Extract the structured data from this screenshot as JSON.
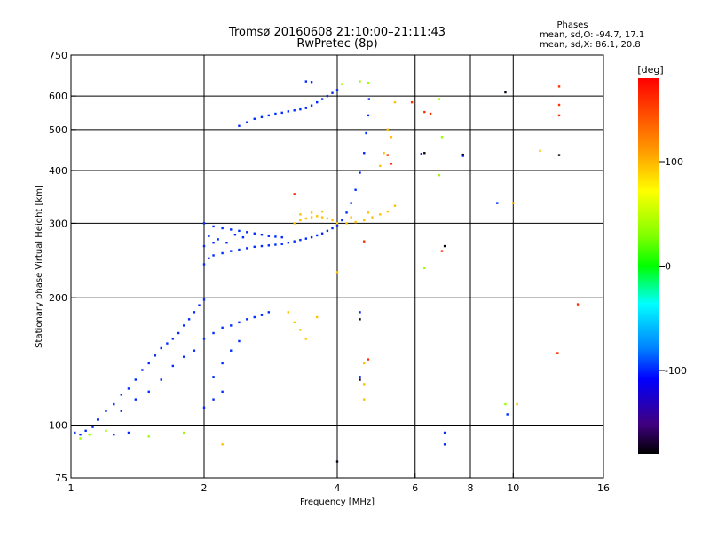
{
  "chart_data": {
    "type": "scatter",
    "title": "Tromsø 20160608 21:10:00–21:11:43",
    "subtitle": "RwPretec (8p)",
    "xlabel": "Frequency [MHz]",
    "ylabel": "Stationary phase Virtual Height [km]",
    "x_scale": "log",
    "y_scale": "log",
    "xlim": [
      1,
      16
    ],
    "ylim": [
      75,
      750
    ],
    "x_ticks": [
      1,
      2,
      4,
      6,
      8,
      10,
      16
    ],
    "x_tick_labels": [
      "1",
      "2",
      "4",
      "6",
      "8",
      "10",
      "16"
    ],
    "y_ticks": [
      75,
      100,
      200,
      300,
      400,
      500,
      600,
      750
    ],
    "y_tick_labels": [
      "75",
      "100",
      "200",
      "300",
      "400",
      "500",
      "600",
      "750"
    ],
    "x_grid": [
      1,
      2,
      4,
      6,
      8,
      10
    ],
    "y_grid": [
      100,
      200,
      300,
      400,
      500,
      600
    ],
    "grid": true,
    "stats": {
      "heading": "Phases",
      "line_o": "mean, sd,O: -94.7, 17.1",
      "line_x": "mean, sd,X:  86.1, 20.8"
    },
    "colorbar": {
      "label": "[deg]",
      "range": [
        -180,
        180
      ],
      "ticks": [
        100,
        0,
        -100
      ],
      "tick_labels": [
        "100",
        "0",
        "-100"
      ],
      "colors": [
        "#ff0000",
        "#ffff00",
        "#00ff00",
        "#00ffff",
        "#0000ff",
        "#000000"
      ]
    },
    "series": [
      {
        "phase_deg": -100,
        "points": [
          [
            1.02,
            96
          ],
          [
            1.05,
            95
          ],
          [
            1.08,
            97
          ],
          [
            1.12,
            99
          ],
          [
            1.15,
            103
          ],
          [
            1.2,
            108
          ],
          [
            1.25,
            112
          ],
          [
            1.3,
            118
          ],
          [
            1.35,
            122
          ],
          [
            1.4,
            128
          ],
          [
            1.45,
            135
          ],
          [
            1.5,
            140
          ],
          [
            1.55,
            146
          ],
          [
            1.6,
            152
          ],
          [
            1.65,
            156
          ],
          [
            1.7,
            160
          ],
          [
            1.75,
            165
          ],
          [
            1.8,
            172
          ],
          [
            1.85,
            178
          ],
          [
            1.9,
            185
          ],
          [
            1.95,
            192
          ],
          [
            2.0,
            198
          ],
          [
            1.3,
            108
          ],
          [
            1.4,
            115
          ],
          [
            1.5,
            120
          ],
          [
            1.6,
            128
          ],
          [
            1.7,
            138
          ],
          [
            1.8,
            145
          ],
          [
            1.9,
            150
          ],
          [
            2.0,
            160
          ],
          [
            2.1,
            165
          ],
          [
            2.2,
            170
          ],
          [
            2.3,
            172
          ],
          [
            2.4,
            175
          ],
          [
            2.5,
            178
          ],
          [
            2.6,
            180
          ],
          [
            2.7,
            182
          ],
          [
            2.8,
            185
          ],
          [
            2.1,
            130
          ],
          [
            2.2,
            140
          ],
          [
            2.3,
            150
          ],
          [
            2.4,
            158
          ],
          [
            2.0,
            110
          ],
          [
            2.1,
            115
          ],
          [
            2.2,
            120
          ],
          [
            1.25,
            95
          ],
          [
            1.35,
            96
          ],
          [
            2.0,
            240
          ],
          [
            2.05,
            248
          ],
          [
            2.1,
            252
          ],
          [
            2.2,
            255
          ],
          [
            2.3,
            258
          ],
          [
            2.4,
            260
          ],
          [
            2.5,
            262
          ],
          [
            2.6,
            264
          ],
          [
            2.7,
            265
          ],
          [
            2.8,
            266
          ],
          [
            2.9,
            267
          ],
          [
            3.0,
            268
          ],
          [
            3.1,
            270
          ],
          [
            3.2,
            272
          ],
          [
            3.3,
            274
          ],
          [
            3.4,
            276
          ],
          [
            3.5,
            278
          ],
          [
            3.6,
            281
          ],
          [
            3.7,
            284
          ],
          [
            3.8,
            288
          ],
          [
            3.9,
            292
          ],
          [
            4.0,
            297
          ],
          [
            4.1,
            305
          ],
          [
            4.2,
            318
          ],
          [
            4.3,
            335
          ],
          [
            4.4,
            360
          ],
          [
            4.5,
            395
          ],
          [
            4.6,
            440
          ],
          [
            4.65,
            490
          ],
          [
            4.7,
            540
          ],
          [
            4.72,
            590
          ],
          [
            2.0,
            300
          ],
          [
            2.1,
            295
          ],
          [
            2.2,
            292
          ],
          [
            2.3,
            290
          ],
          [
            2.4,
            288
          ],
          [
            2.5,
            286
          ],
          [
            2.6,
            284
          ],
          [
            2.7,
            282
          ],
          [
            2.8,
            280
          ],
          [
            2.9,
            279
          ],
          [
            3.0,
            278
          ],
          [
            2.05,
            280
          ],
          [
            2.15,
            275
          ],
          [
            2.25,
            270
          ],
          [
            2.0,
            265
          ],
          [
            2.1,
            270
          ],
          [
            2.35,
            282
          ],
          [
            2.45,
            278
          ],
          [
            2.4,
            510
          ],
          [
            2.5,
            520
          ],
          [
            2.6,
            530
          ],
          [
            2.7,
            535
          ],
          [
            2.8,
            540
          ],
          [
            2.9,
            545
          ],
          [
            3.0,
            548
          ],
          [
            3.1,
            552
          ],
          [
            3.2,
            555
          ],
          [
            3.3,
            558
          ],
          [
            3.4,
            562
          ],
          [
            3.5,
            570
          ],
          [
            3.6,
            580
          ],
          [
            3.7,
            590
          ],
          [
            3.8,
            600
          ],
          [
            3.9,
            610
          ],
          [
            4.0,
            620
          ],
          [
            3.4,
            650
          ],
          [
            3.5,
            648
          ],
          [
            9.7,
            106
          ],
          [
            7.0,
            96
          ],
          [
            7.0,
            90
          ],
          [
            4.5,
            130
          ],
          [
            4.5,
            185
          ],
          [
            6.2,
            438
          ],
          [
            7.7,
            433
          ],
          [
            9.2,
            335
          ]
        ]
      },
      {
        "phase_deg": 100,
        "points": [
          [
            3.2,
            300
          ],
          [
            3.3,
            305
          ],
          [
            3.4,
            308
          ],
          [
            3.5,
            310
          ],
          [
            3.6,
            312
          ],
          [
            3.7,
            310
          ],
          [
            3.8,
            308
          ],
          [
            3.9,
            305
          ],
          [
            4.0,
            300
          ],
          [
            4.2,
            300
          ],
          [
            4.4,
            302
          ],
          [
            4.6,
            305
          ],
          [
            4.8,
            310
          ],
          [
            5.0,
            315
          ],
          [
            5.2,
            320
          ],
          [
            5.4,
            330
          ],
          [
            3.3,
            315
          ],
          [
            3.5,
            318
          ],
          [
            3.7,
            320
          ],
          [
            4.3,
            310
          ],
          [
            4.7,
            318
          ],
          [
            3.1,
            185
          ],
          [
            3.2,
            175
          ],
          [
            3.3,
            168
          ],
          [
            3.4,
            160
          ],
          [
            3.6,
            180
          ],
          [
            4.6,
            140
          ],
          [
            4.6,
            125
          ],
          [
            4.6,
            115
          ],
          [
            5.2,
            500
          ],
          [
            5.3,
            480
          ],
          [
            5.1,
            440
          ],
          [
            5.0,
            410
          ],
          [
            5.4,
            580
          ],
          [
            10.2,
            112
          ],
          [
            11.5,
            445
          ],
          [
            10.0,
            335
          ],
          [
            4.0,
            230
          ],
          [
            2.2,
            90
          ]
        ]
      },
      {
        "phase_deg": 40,
        "points": [
          [
            1.05,
            93
          ],
          [
            1.1,
            95
          ],
          [
            1.2,
            97
          ],
          [
            1.5,
            94
          ],
          [
            1.8,
            96
          ],
          [
            4.1,
            640
          ],
          [
            4.5,
            650
          ],
          [
            4.7,
            645
          ],
          [
            6.8,
            590
          ],
          [
            6.9,
            480
          ],
          [
            6.8,
            390
          ],
          [
            9.6,
            112
          ],
          [
            6.3,
            235
          ]
        ]
      },
      {
        "phase_deg": 160,
        "points": [
          [
            3.2,
            352
          ],
          [
            4.6,
            272
          ],
          [
            5.9,
            580
          ],
          [
            6.3,
            550
          ],
          [
            6.5,
            545
          ],
          [
            6.9,
            258
          ],
          [
            12.7,
            632
          ],
          [
            12.7,
            572
          ],
          [
            12.7,
            540
          ],
          [
            12.6,
            148
          ],
          [
            14.0,
            193
          ],
          [
            5.3,
            415
          ],
          [
            5.2,
            435
          ],
          [
            4.7,
            143
          ]
        ]
      },
      {
        "phase_deg": -175,
        "points": [
          [
            4.0,
            82
          ],
          [
            4.5,
            178
          ],
          [
            4.5,
            128
          ],
          [
            7.0,
            265
          ],
          [
            9.6,
            612
          ],
          [
            7.7,
            436
          ],
          [
            12.7,
            435
          ],
          [
            6.3,
            440
          ]
        ]
      }
    ]
  }
}
